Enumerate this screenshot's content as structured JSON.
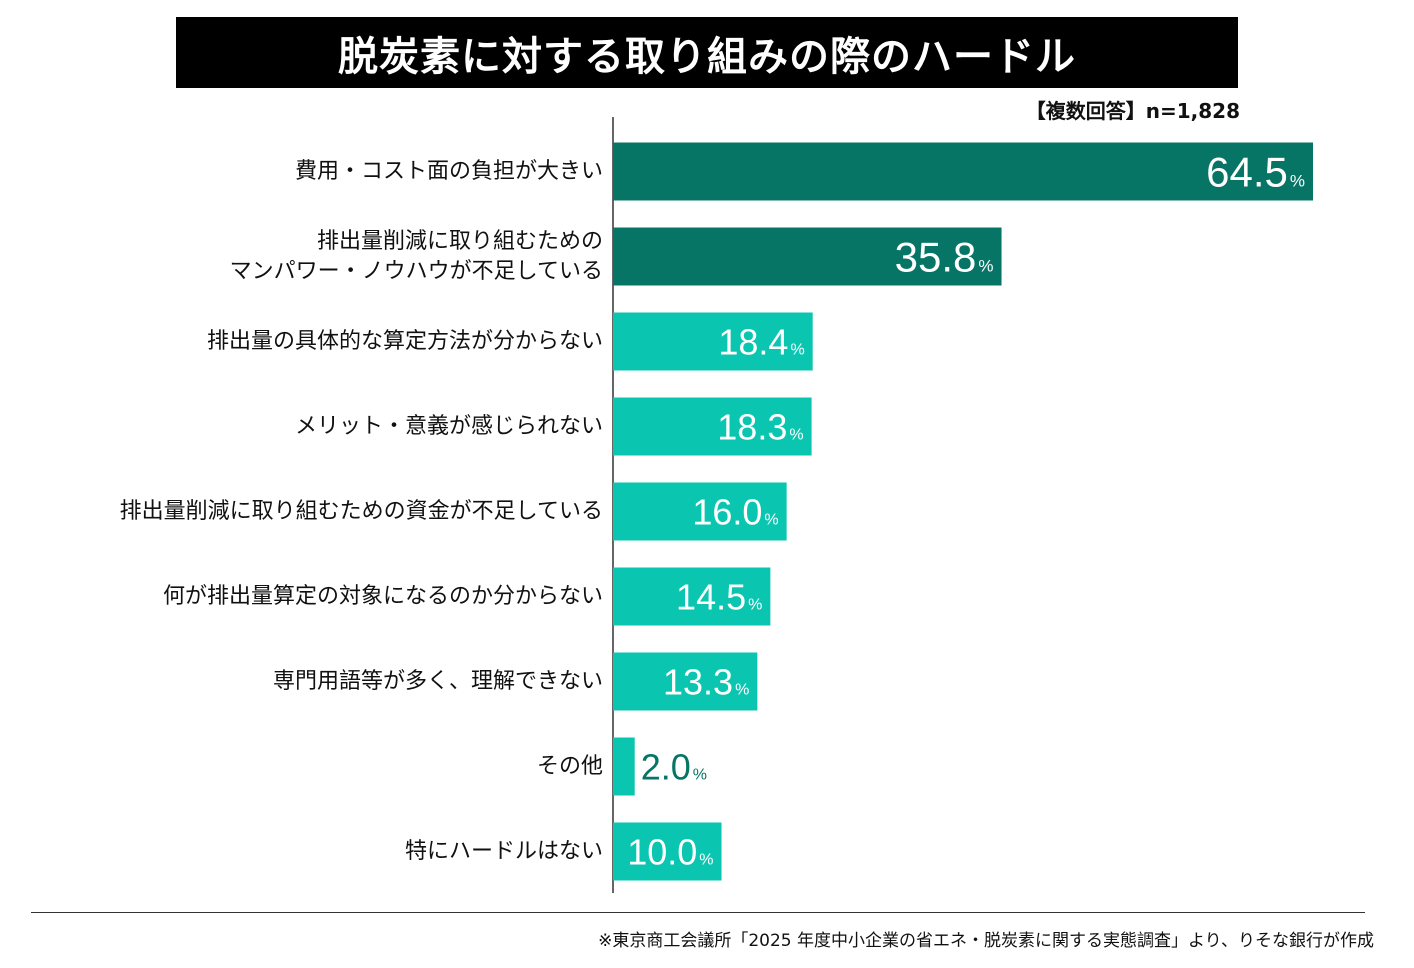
{
  "title": "脱炭素に対する取り組みの際のハードル",
  "sample_note": "【複数回答】n=1,828",
  "source_note": "※東京商工会議所「2025 年度中小企業の省エネ・脱炭素に関する実態調査」より、りそな銀行が作成",
  "colors": {
    "dark_bar": "#077566",
    "light_bar": "#0AC6B1",
    "inside_text": "#ffffff",
    "outside_text": "#077566"
  },
  "chart_data": {
    "type": "bar",
    "orientation": "horizontal",
    "categories": [
      [
        "費用・コスト面の負担が大きい"
      ],
      [
        "排出量削減に取り組むための",
        "マンパワー・ノウハウが不足している"
      ],
      [
        "排出量の具体的な算定方法が分からない"
      ],
      [
        "メリット・意義が感じられない"
      ],
      [
        "排出量削減に取り組むための資金が不足している"
      ],
      [
        "何が排出量算定の対象になるのか分からない"
      ],
      [
        "専門用語等が多く、理解できない"
      ],
      [
        "その他"
      ],
      [
        "特にハードルはない"
      ]
    ],
    "values": [
      64.5,
      35.8,
      18.4,
      18.3,
      16.0,
      14.5,
      13.3,
      2.0,
      10.0
    ],
    "value_labels": [
      "64.5",
      "35.8",
      "18.4",
      "18.3",
      "16.0",
      "14.5",
      "13.3",
      "2.0",
      "10.0"
    ],
    "unit": "%",
    "highlight_top": 2,
    "xlim": [
      0,
      100
    ],
    "grid": false,
    "legend": "none"
  }
}
